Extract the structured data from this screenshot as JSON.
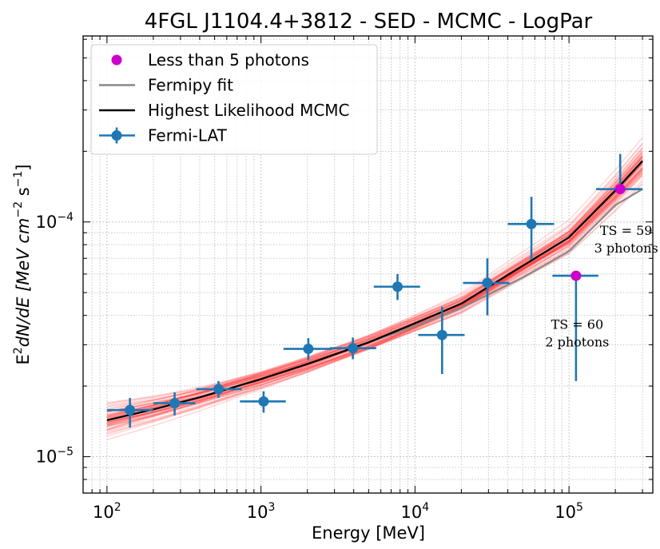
{
  "chart_data": {
    "type": "scatter",
    "title": "4FGL J1104.4+3812 - SED - MCMC - LogPar",
    "xlabel": "Energy [MeV]",
    "ylabel_parts": {
      "prefix": "E",
      "sq": "2",
      "mid": "dN/dE [MeV cm",
      "exp1": "−2",
      "mid2": " s",
      "exp2": "−1",
      "suffix": "]"
    },
    "x_scale": "log",
    "y_scale": "log",
    "xlim": [
      70,
      350000
    ],
    "ylim": [
      7e-06,
      0.00062
    ],
    "grid": true,
    "legend_position": "upper-left",
    "legend": [
      {
        "label": "Less than 5 photons",
        "kind": "marker",
        "color": "#cc00cc"
      },
      {
        "label": "Fermipy fit",
        "kind": "line",
        "color": "#888888"
      },
      {
        "label": "Highest Likelihood MCMC",
        "kind": "line",
        "color": "#000000"
      },
      {
        "label": "Fermi-LAT",
        "kind": "errorbar",
        "color": "#1f77b4"
      }
    ],
    "x_ticks": [
      {
        "value": 100,
        "base": "10",
        "exp": "2"
      },
      {
        "value": 1000,
        "base": "10",
        "exp": "3"
      },
      {
        "value": 10000,
        "base": "10",
        "exp": "4"
      },
      {
        "value": 100000,
        "base": "10",
        "exp": "5"
      }
    ],
    "y_ticks": [
      {
        "value": 1e-05,
        "base": "10",
        "exp": "−5"
      },
      {
        "value": 0.0001,
        "base": "10",
        "exp": "−4"
      }
    ],
    "points": [
      {
        "x": 141,
        "y": 1.58e-05,
        "xlo": 100,
        "xhi": 200,
        "ylo": 1.33e-05,
        "yhi": 1.78e-05,
        "low_photon": false
      },
      {
        "x": 275,
        "y": 1.69e-05,
        "xlo": 200,
        "xhi": 375,
        "ylo": 1.5e-05,
        "yhi": 1.88e-05,
        "low_photon": false
      },
      {
        "x": 530,
        "y": 1.94e-05,
        "xlo": 380,
        "xhi": 750,
        "ylo": 1.78e-05,
        "yhi": 2.1e-05,
        "low_photon": false
      },
      {
        "x": 1040,
        "y": 1.72e-05,
        "xlo": 730,
        "xhi": 1450,
        "ylo": 1.54e-05,
        "yhi": 1.9e-05,
        "low_photon": false
      },
      {
        "x": 2030,
        "y": 2.88e-05,
        "xlo": 1400,
        "xhi": 2900,
        "ylo": 2.58e-05,
        "yhi": 3.2e-05,
        "low_photon": false
      },
      {
        "x": 3950,
        "y": 2.9e-05,
        "xlo": 2800,
        "xhi": 5600,
        "ylo": 2.6e-05,
        "yhi": 3.22e-05,
        "low_photon": false
      },
      {
        "x": 7700,
        "y": 5.3e-05,
        "xlo": 5400,
        "xhi": 10800,
        "ylo": 4.65e-05,
        "yhi": 6e-05,
        "low_photon": false
      },
      {
        "x": 15000,
        "y": 3.3e-05,
        "xlo": 10500,
        "xhi": 21000,
        "ylo": 2.25e-05,
        "yhi": 4.35e-05,
        "low_photon": false
      },
      {
        "x": 29500,
        "y": 5.5e-05,
        "xlo": 20500,
        "xhi": 41000,
        "ylo": 4e-05,
        "yhi": 7e-05,
        "low_photon": false
      },
      {
        "x": 57000,
        "y": 9.8e-05,
        "xlo": 40000,
        "xhi": 80000,
        "ylo": 6.9e-05,
        "yhi": 0.000128,
        "low_photon": false
      },
      {
        "x": 111000,
        "y": 5.9e-05,
        "xlo": 78000,
        "xhi": 155000,
        "ylo": 2.1e-05,
        "yhi": 5.9e-05,
        "low_photon": true
      },
      {
        "x": 215000,
        "y": 0.000138,
        "xlo": 150000,
        "xhi": 300000,
        "ylo": 0.000138,
        "yhi": 0.000195,
        "low_photon": true
      }
    ],
    "highest_likelihood_mcmc": {
      "x": [
        100,
        200,
        400,
        1000,
        2000,
        5000,
        10000,
        20000,
        50000,
        100000,
        200000,
        300000
      ],
      "y": [
        1.43e-05,
        1.59e-05,
        1.79e-05,
        2.14e-05,
        2.48e-05,
        3.07e-05,
        3.7e-05,
        4.49e-05,
        6.5e-05,
        8.6e-05,
        0.000136,
        0.000182
      ]
    },
    "fermipy_fit": {
      "x": [
        5000,
        10000,
        20000,
        50000,
        100000,
        200000,
        300000
      ],
      "y": [
        3.07e-05,
        3.6e-05,
        4.3e-05,
        5.8e-05,
        7.5e-05,
        0.000118,
        0.000138
      ]
    },
    "mcmc_band": {
      "n_samples": 60,
      "color": "#ff3333"
    },
    "annotations": [
      {
        "x": 113000,
        "y": 3.5e-05,
        "line1": "TS  =  60",
        "line2": "2  photons"
      },
      {
        "x": 235000,
        "y": 8.8e-05,
        "line1": "TS  =  59",
        "line2": "3  photons"
      }
    ]
  }
}
